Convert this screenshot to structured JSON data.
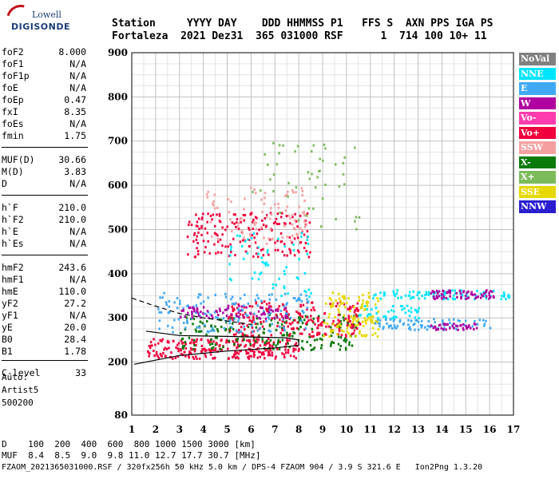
{
  "logo": {
    "line1": "Lowell",
    "line2": "DIGISONDE"
  },
  "header": {
    "row1": "Station     YYYY DAY    DDD HHMMSS P1   FFS S  AXN PPS IGA PS",
    "row2": "Fortaleza  2021 Dez31  365 031000 RSF      1  714 100 10+ 11"
  },
  "params": [
    {
      "label": "foF2",
      "value": "8.000"
    },
    {
      "label": "foF1",
      "value": "N/A"
    },
    {
      "label": "foF1p",
      "value": "N/A"
    },
    {
      "label": "foE",
      "value": "N/A"
    },
    {
      "label": "foEp",
      "value": "0.47"
    },
    {
      "label": "fxI",
      "value": "8.35"
    },
    {
      "label": "foEs",
      "value": "N/A"
    },
    {
      "label": "fmin",
      "value": "1.75"
    },
    {
      "label": "MUF(D)",
      "value": "30.66"
    },
    {
      "label": "M(D)",
      "value": "3.83"
    },
    {
      "label": "D",
      "value": "N/A"
    },
    {
      "label": "h`F",
      "value": "210.0"
    },
    {
      "label": "h`F2",
      "value": "210.0"
    },
    {
      "label": "h`E",
      "value": "N/A"
    },
    {
      "label": "h`Es",
      "value": "N/A"
    },
    {
      "label": "hmF2",
      "value": "243.6"
    },
    {
      "label": "hmF1",
      "value": "N/A"
    },
    {
      "label": "hmE",
      "value": "110.0"
    },
    {
      "label": "yF2",
      "value": "27.2"
    },
    {
      "label": "yF1",
      "value": "N/A"
    },
    {
      "label": "yE",
      "value": "20.0"
    },
    {
      "label": "B0",
      "value": "28.4"
    },
    {
      "label": "B1",
      "value": "1.78"
    },
    {
      "label": "C-level",
      "value": "33"
    }
  ],
  "auto": {
    "line1": "Auto:",
    "line2": "Artist5",
    "line3": "500200"
  },
  "footer": {
    "d_row": "D    100  200  400  600  800 1000 1500 3000 [km]",
    "muf_row": "MUF  8.4  8.5  9.0  9.8 11.0 12.7 17.7 30.7 [MHz]",
    "file_row": "FZAOM_2021365031000.RSF / 320fx256h 50 kHz 5.0 km / DPS-4 FZAOM 904 / 3.9 S 321.6 E   Ion2Png 1.3.20"
  },
  "legend": [
    {
      "label": "NoVal",
      "color": "#808080"
    },
    {
      "label": "NNE",
      "color": "#00e5ff"
    },
    {
      "label": "E",
      "color": "#3fa9f5"
    },
    {
      "label": "W",
      "color": "#b000a0"
    },
    {
      "label": "Vo-",
      "color": "#ff3cae"
    },
    {
      "label": "Vo+",
      "color": "#f0003c"
    },
    {
      "label": "SSW",
      "color": "#f5a0a0"
    },
    {
      "label": "X-",
      "color": "#0a7a0a"
    },
    {
      "label": "X+",
      "color": "#7cbb5a"
    },
    {
      "label": "SSE",
      "color": "#e6d800"
    },
    {
      "label": "NNW",
      "color": "#2a1ed0"
    }
  ],
  "chart_data": {
    "type": "scatter",
    "xlabel": "",
    "ylabel": "",
    "xlim": [
      1,
      17
    ],
    "ylim": [
      80,
      900
    ],
    "x_ticks": [
      "1",
      "2",
      "3",
      "4",
      "5",
      "6",
      "7",
      "8",
      "9",
      "10",
      "11",
      "12",
      "13",
      "14",
      "15",
      "16",
      "17"
    ],
    "y_ticks": [
      "80",
      "200",
      "300",
      "400",
      "500",
      "600",
      "700",
      "800",
      "900"
    ],
    "grid": true,
    "legend_position": "right",
    "clusters": [
      {
        "series": "Vo+",
        "x_range": [
          1.6,
          8.0
        ],
        "y_range": [
          210,
          255
        ],
        "count": 260
      },
      {
        "series": "X-",
        "x_range": [
          3.0,
          10.5
        ],
        "y_range": [
          230,
          310
        ],
        "count": 200
      },
      {
        "series": "Vo+",
        "x_range": [
          5.0,
          10.6
        ],
        "y_range": [
          260,
          340
        ],
        "count": 220
      },
      {
        "series": "SSE",
        "x_range": [
          9.0,
          11.3
        ],
        "y_range": [
          260,
          360
        ],
        "count": 120
      },
      {
        "series": "E",
        "x_range": [
          2.0,
          8.5
        ],
        "y_range": [
          270,
          360
        ],
        "count": 150
      },
      {
        "series": "W",
        "x_range": [
          3.0,
          7.5
        ],
        "y_range": [
          300,
          330
        ],
        "count": 80
      },
      {
        "series": "Vo+",
        "x_range": [
          3.3,
          8.5
        ],
        "y_range": [
          440,
          540
        ],
        "count": 180
      },
      {
        "series": "SSW",
        "x_range": [
          4.0,
          8.3
        ],
        "y_range": [
          470,
          600
        ],
        "count": 90
      },
      {
        "series": "NNE",
        "x_range": [
          5.0,
          8.5
        ],
        "y_range": [
          350,
          500
        ],
        "count": 60
      },
      {
        "series": "X+",
        "x_range": [
          6.0,
          10.5
        ],
        "y_range": [
          500,
          700
        ],
        "count": 50
      },
      {
        "series": "NNE",
        "x_range": [
          11.0,
          16.9
        ],
        "y_range": [
          345,
          365
        ],
        "count": 90
      },
      {
        "series": "W",
        "x_range": [
          13.5,
          16.2
        ],
        "y_range": [
          345,
          365
        ],
        "count": 70
      },
      {
        "series": "E",
        "x_range": [
          11.0,
          16.0
        ],
        "y_range": [
          275,
          300
        ],
        "count": 80
      },
      {
        "series": "W",
        "x_range": [
          13.5,
          15.5
        ],
        "y_range": [
          275,
          290
        ],
        "count": 40
      },
      {
        "series": "NNE",
        "x_range": [
          10.5,
          13.0
        ],
        "y_range": [
          300,
          330
        ],
        "count": 40
      }
    ],
    "lines": [
      {
        "name": "profile",
        "points": [
          [
            1.1,
            195
          ],
          [
            3.0,
            215
          ],
          [
            5.0,
            225
          ],
          [
            7.0,
            232
          ],
          [
            8.0,
            238
          ],
          [
            8.0,
            250
          ],
          [
            7.5,
            255
          ],
          [
            5.0,
            258
          ],
          [
            3.0,
            260
          ],
          [
            1.6,
            270
          ]
        ]
      },
      {
        "name": "dashed-trace",
        "dashed": true,
        "points": [
          [
            1.0,
            345
          ],
          [
            1.8,
            330
          ],
          [
            3.0,
            310
          ],
          [
            4.0,
            300
          ],
          [
            5.0,
            293
          ],
          [
            6.0,
            285
          ]
        ]
      }
    ]
  }
}
